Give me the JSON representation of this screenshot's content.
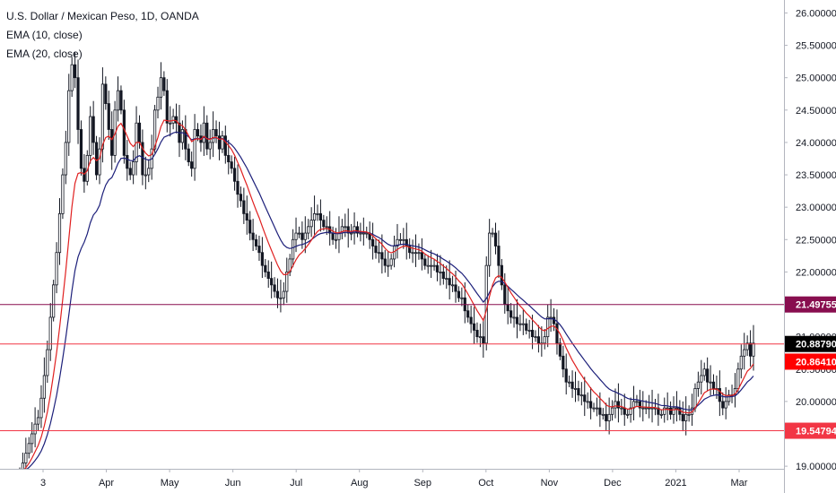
{
  "legend": {
    "title": "U.S. Dollar / Mexican Peso, 1D, OANDA",
    "ema10": "EMA (10, close)",
    "ema20": "EMA (20, close)"
  },
  "chart_data": {
    "type": "candlestick",
    "title": "U.S. Dollar / Mexican Peso, 1D, OANDA",
    "x_tick_labels": [
      "3",
      "Apr",
      "May",
      "Jun",
      "Jul",
      "Aug",
      "Sep",
      "Oct",
      "Nov",
      "Dec",
      "2021",
      "Mar"
    ],
    "y_tick_labels": [
      "19.00000",
      "19.50000",
      "20.00000",
      "20.50000",
      "21.00000",
      "21.50000",
      "22.00000",
      "22.50000",
      "23.00000",
      "23.50000",
      "24.00000",
      "24.50000",
      "25.00000",
      "25.50000",
      "26.00000"
    ],
    "ylim": [
      18.96,
      26.2
    ],
    "grid": false,
    "horizontal_lines": [
      {
        "value": 21.49755,
        "label": "21.49755",
        "color": "#880e4f"
      },
      {
        "value": 20.8879,
        "label": "20.88790",
        "color": "#f23645"
      },
      {
        "value": 19.54794,
        "label": "19.54794",
        "color": "#f23645"
      }
    ],
    "price_labels": [
      {
        "value": 20.8879,
        "label": "20.88790",
        "color": "#000000"
      },
      {
        "value": 20.8641,
        "label": "20.86410",
        "color": "#ff0000"
      }
    ],
    "ema_colors": {
      "ema10": "#e02020",
      "ema20": "#1c1f7a"
    },
    "closes": [
      18.9,
      19.05,
      19.2,
      19.35,
      19.5,
      19.65,
      19.75,
      20.05,
      20.4,
      20.8,
      21.3,
      21.8,
      22.3,
      22.9,
      23.5,
      24.0,
      24.8,
      25.2,
      25.0,
      24.2,
      23.6,
      23.4,
      23.8,
      24.4,
      24.0,
      23.5,
      23.9,
      24.9,
      24.6,
      24.2,
      23.8,
      24.5,
      24.8,
      24.5,
      23.8,
      23.6,
      23.5,
      23.7,
      24.3,
      24.0,
      23.5,
      23.5,
      23.6,
      23.9,
      24.5,
      24.7,
      25.0,
      24.8,
      24.3,
      24.3,
      24.4,
      24.3,
      24.0,
      24.2,
      23.9,
      23.7,
      23.6,
      24.2,
      24.1,
      24.0,
      24.3,
      23.9,
      24.0,
      24.2,
      24.1,
      23.9,
      24.1,
      23.8,
      23.7,
      23.6,
      23.4,
      23.2,
      23.1,
      22.9,
      22.8,
      22.6,
      22.5,
      22.4,
      22.3,
      22.1,
      22.0,
      21.9,
      21.8,
      21.7,
      21.6,
      21.6,
      21.7,
      22.0,
      22.2,
      22.5,
      22.6,
      22.6,
      22.5,
      22.6,
      22.7,
      22.8,
      22.9,
      22.9,
      22.8,
      22.7,
      22.7,
      22.6,
      22.5,
      22.5,
      22.6,
      22.7,
      22.7,
      22.6,
      22.6,
      22.7,
      22.6,
      22.6,
      22.6,
      22.6,
      22.5,
      22.4,
      22.3,
      22.3,
      22.2,
      22.1,
      22.1,
      22.2,
      22.4,
      22.5,
      22.5,
      22.5,
      22.4,
      22.3,
      22.3,
      22.3,
      22.3,
      22.2,
      22.1,
      22.1,
      22.1,
      22.1,
      22.0,
      22.0,
      21.9,
      21.9,
      21.8,
      21.8,
      21.7,
      21.6,
      21.6,
      21.4,
      21.3,
      21.2,
      21.1,
      21.0,
      21.0,
      20.9,
      22.1,
      22.6,
      22.6,
      22.4,
      22.1,
      21.8,
      21.5,
      21.4,
      21.3,
      21.3,
      21.2,
      21.2,
      21.2,
      21.1,
      21.1,
      21.0,
      21.0,
      20.9,
      20.9,
      21.0,
      21.3,
      21.3,
      21.2,
      20.9,
      20.7,
      20.5,
      20.3,
      20.3,
      20.2,
      20.2,
      20.1,
      20.1,
      20.0,
      20.0,
      19.9,
      19.9,
      19.9,
      19.8,
      19.8,
      19.7,
      19.8,
      19.9,
      20.0,
      19.9,
      19.9,
      19.8,
      19.8,
      19.9,
      20.0,
      20.0,
      19.9,
      19.9,
      19.9,
      19.9,
      19.9,
      19.9,
      19.8,
      19.8,
      19.9,
      19.9,
      19.8,
      19.9,
      19.9,
      19.8,
      19.7,
      19.8,
      19.8,
      19.9,
      20.2,
      20.3,
      20.4,
      20.5,
      20.3,
      20.3,
      20.2,
      20.2,
      20.0,
      19.9,
      20.0,
      20.1,
      20.1,
      20.2,
      20.5,
      20.7,
      20.8,
      20.9,
      20.7,
      20.9
    ]
  }
}
